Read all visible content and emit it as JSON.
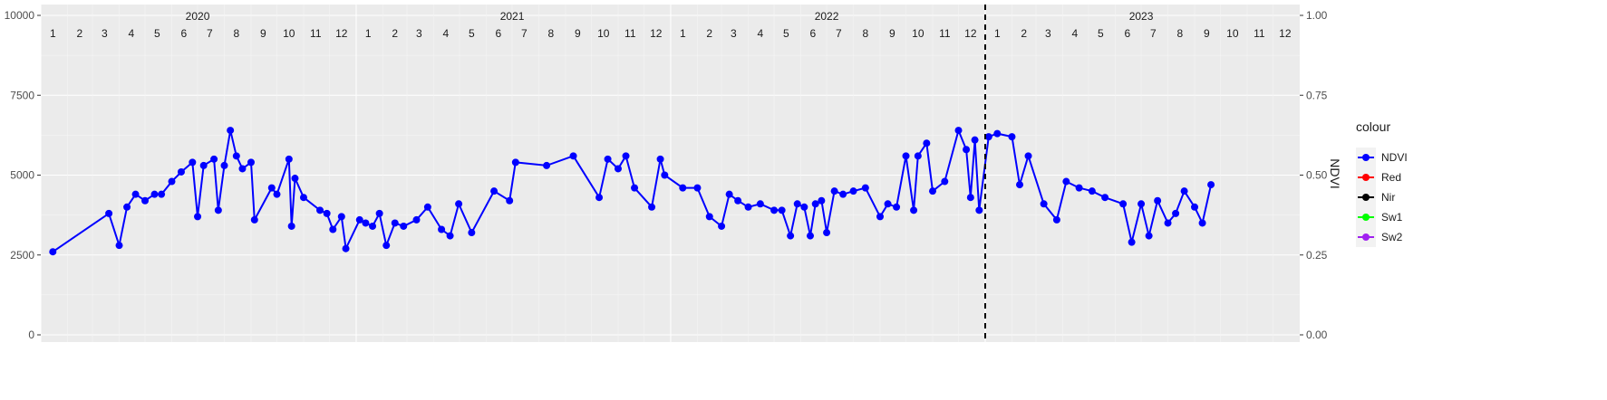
{
  "chart_data": {
    "type": "line",
    "title": "",
    "xlabel": "",
    "ylabel": "",
    "y2label": "NDVI",
    "ylim": [
      0,
      10000
    ],
    "y2lim": [
      0,
      1
    ],
    "yticks": [
      0,
      2500,
      5000,
      7500,
      10000
    ],
    "y2ticks": [
      "0.00",
      "0.25",
      "0.50",
      "0.75",
      "1.00"
    ],
    "xlim": [
      "2020-01-01",
      "2024-01-01"
    ],
    "years": [
      "2020",
      "2021",
      "2022",
      "2023"
    ],
    "months": [
      "1",
      "2",
      "3",
      "4",
      "5",
      "6",
      "7",
      "8",
      "9",
      "10",
      "11",
      "12"
    ],
    "vline_date": "2023-01-01",
    "grid": true,
    "legend": {
      "title": "colour",
      "position": "right"
    },
    "series": [
      {
        "name": "NDVI",
        "color": "#0000ff",
        "axis": "right",
        "points": [
          [
            "2020-01-15",
            0.26
          ],
          [
            "2020-03-20",
            0.38
          ],
          [
            "2020-04-01",
            0.28
          ],
          [
            "2020-04-10",
            0.4
          ],
          [
            "2020-04-20",
            0.44
          ],
          [
            "2020-05-01",
            0.42
          ],
          [
            "2020-05-12",
            0.44
          ],
          [
            "2020-05-20",
            0.44
          ],
          [
            "2020-06-01",
            0.48
          ],
          [
            "2020-06-12",
            0.51
          ],
          [
            "2020-06-25",
            0.54
          ],
          [
            "2020-07-01",
            0.37
          ],
          [
            "2020-07-08",
            0.53
          ],
          [
            "2020-07-20",
            0.55
          ],
          [
            "2020-07-25",
            0.39
          ],
          [
            "2020-08-01",
            0.53
          ],
          [
            "2020-08-08",
            0.64
          ],
          [
            "2020-08-15",
            0.56
          ],
          [
            "2020-08-22",
            0.52
          ],
          [
            "2020-09-01",
            0.54
          ],
          [
            "2020-09-05",
            0.36
          ],
          [
            "2020-09-25",
            0.46
          ],
          [
            "2020-10-01",
            0.44
          ],
          [
            "2020-10-15",
            0.55
          ],
          [
            "2020-10-18",
            0.34
          ],
          [
            "2020-10-22",
            0.49
          ],
          [
            "2020-11-01",
            0.43
          ],
          [
            "2020-11-20",
            0.39
          ],
          [
            "2020-11-28",
            0.38
          ],
          [
            "2020-12-05",
            0.33
          ],
          [
            "2020-12-15",
            0.37
          ],
          [
            "2020-12-20",
            0.27
          ],
          [
            "2021-01-05",
            0.36
          ],
          [
            "2021-01-12",
            0.35
          ],
          [
            "2021-01-20",
            0.34
          ],
          [
            "2021-01-28",
            0.38
          ],
          [
            "2021-02-05",
            0.28
          ],
          [
            "2021-02-15",
            0.35
          ],
          [
            "2021-02-25",
            0.34
          ],
          [
            "2021-03-12",
            0.36
          ],
          [
            "2021-03-25",
            0.4
          ],
          [
            "2021-04-10",
            0.33
          ],
          [
            "2021-04-20",
            0.31
          ],
          [
            "2021-04-30",
            0.41
          ],
          [
            "2021-05-15",
            0.32
          ],
          [
            "2021-06-10",
            0.45
          ],
          [
            "2021-06-28",
            0.42
          ],
          [
            "2021-07-05",
            0.54
          ],
          [
            "2021-08-10",
            0.53
          ],
          [
            "2021-09-10",
            0.56
          ],
          [
            "2021-10-10",
            0.43
          ],
          [
            "2021-10-20",
            0.55
          ],
          [
            "2021-11-01",
            0.52
          ],
          [
            "2021-11-10",
            0.56
          ],
          [
            "2021-11-20",
            0.46
          ],
          [
            "2021-12-10",
            0.4
          ],
          [
            "2021-12-20",
            0.55
          ],
          [
            "2021-12-25",
            0.5
          ],
          [
            "2022-01-15",
            0.46
          ],
          [
            "2022-02-01",
            0.46
          ],
          [
            "2022-02-15",
            0.37
          ],
          [
            "2022-03-01",
            0.34
          ],
          [
            "2022-03-10",
            0.44
          ],
          [
            "2022-03-20",
            0.42
          ],
          [
            "2022-04-01",
            0.4
          ],
          [
            "2022-04-15",
            0.41
          ],
          [
            "2022-05-01",
            0.39
          ],
          [
            "2022-05-10",
            0.39
          ],
          [
            "2022-05-20",
            0.31
          ],
          [
            "2022-05-28",
            0.41
          ],
          [
            "2022-06-05",
            0.4
          ],
          [
            "2022-06-12",
            0.31
          ],
          [
            "2022-06-18",
            0.41
          ],
          [
            "2022-06-25",
            0.42
          ],
          [
            "2022-07-01",
            0.32
          ],
          [
            "2022-07-10",
            0.45
          ],
          [
            "2022-07-20",
            0.44
          ],
          [
            "2022-08-01",
            0.45
          ],
          [
            "2022-08-15",
            0.46
          ],
          [
            "2022-09-01",
            0.37
          ],
          [
            "2022-09-10",
            0.41
          ],
          [
            "2022-09-20",
            0.4
          ],
          [
            "2022-10-01",
            0.56
          ],
          [
            "2022-10-10",
            0.39
          ],
          [
            "2022-10-15",
            0.56
          ],
          [
            "2022-10-25",
            0.6
          ],
          [
            "2022-11-01",
            0.45
          ],
          [
            "2022-11-15",
            0.48
          ],
          [
            "2022-12-01",
            0.64
          ],
          [
            "2022-12-10",
            0.58
          ],
          [
            "2022-12-15",
            0.43
          ],
          [
            "2022-12-20",
            0.61
          ],
          [
            "2022-12-25",
            0.39
          ],
          [
            "2023-01-05",
            0.62
          ],
          [
            "2023-01-15",
            0.63
          ],
          [
            "2023-02-01",
            0.62
          ],
          [
            "2023-02-10",
            0.47
          ],
          [
            "2023-02-20",
            0.56
          ],
          [
            "2023-03-10",
            0.41
          ],
          [
            "2023-03-25",
            0.36
          ],
          [
            "2023-04-05",
            0.48
          ],
          [
            "2023-04-20",
            0.46
          ],
          [
            "2023-05-05",
            0.45
          ],
          [
            "2023-05-20",
            0.43
          ],
          [
            "2023-06-10",
            0.41
          ],
          [
            "2023-06-20",
            0.29
          ],
          [
            "2023-07-01",
            0.41
          ],
          [
            "2023-07-10",
            0.31
          ],
          [
            "2023-07-20",
            0.42
          ],
          [
            "2023-08-01",
            0.35
          ],
          [
            "2023-08-10",
            0.38
          ],
          [
            "2023-08-20",
            0.45
          ],
          [
            "2023-09-01",
            0.4
          ],
          [
            "2023-09-10",
            0.35
          ],
          [
            "2023-09-20",
            0.47
          ]
        ]
      },
      {
        "name": "Red",
        "color": "#ff0000",
        "axis": "left",
        "points": []
      },
      {
        "name": "Nir",
        "color": "#000000",
        "axis": "left",
        "points": []
      },
      {
        "name": "Sw1",
        "color": "#00ff00",
        "axis": "left",
        "points": []
      },
      {
        "name": "Sw2",
        "color": "#a020f0",
        "axis": "left",
        "points": []
      }
    ]
  }
}
